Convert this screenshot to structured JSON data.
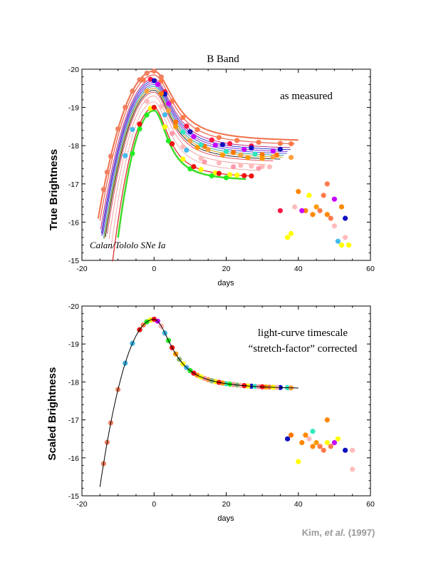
{
  "credit": {
    "author": "Kim, ",
    "etal": "et al.",
    "year": " (1997)"
  },
  "chart_data": [
    {
      "type": "line",
      "title": "B Band",
      "xlabel": "days",
      "ylabel": "True Brightness",
      "annotation": "as measured",
      "sample_label": "Calan/Tololo SNe Ia",
      "xlim": [
        -20,
        60
      ],
      "ylim": [
        -15,
        -20
      ],
      "y_inverted": true,
      "xticks": [
        "-20",
        "0",
        "20",
        "40",
        "60"
      ],
      "yticks": [
        "-20",
        "-19",
        "-18",
        "-17",
        "-16",
        "-15"
      ],
      "model": {
        "rise": [
          6.5,
          1.8
        ],
        "fall": [
          0.05,
          0.027
        ]
      },
      "curves": [
        {
          "stretch": 1.1,
          "peak": -19.95,
          "color": "#f0704a",
          "width": 2.0,
          "start": -15.5,
          "end": 40
        },
        {
          "stretch": 1.07,
          "peak": -19.85,
          "color": "#e8604a",
          "width": 1.2,
          "start": -15.0,
          "end": 39
        },
        {
          "stretch": 1.04,
          "peak": -19.75,
          "color": "#c02a80",
          "width": 1.0,
          "start": -14.8,
          "end": 38
        },
        {
          "stretch": 1.02,
          "peak": -19.7,
          "color": "#2a3fd0",
          "width": 1.0,
          "start": -14.6,
          "end": 38
        },
        {
          "stretch": 1.01,
          "peak": -19.65,
          "color": "#9030d0",
          "width": 1.0,
          "start": -14.5,
          "end": 37
        },
        {
          "stretch": 1.0,
          "peak": -19.6,
          "color": "#5050e0",
          "width": 1.0,
          "start": -14.2,
          "end": 37
        },
        {
          "stretch": 0.98,
          "peak": -19.55,
          "color": "#30a0a0",
          "width": 1.0,
          "start": -14.0,
          "end": 36
        },
        {
          "stretch": 0.97,
          "peak": -19.5,
          "color": "#d0a020",
          "width": 1.0,
          "start": -13.8,
          "end": 36
        },
        {
          "stretch": 0.96,
          "peak": -19.45,
          "color": "#303030",
          "width": 1.0,
          "start": -13.5,
          "end": 35
        },
        {
          "stretch": 0.94,
          "peak": -19.4,
          "color": "#e05060",
          "width": 1.0,
          "start": -13.0,
          "end": 33
        },
        {
          "stretch": 0.9,
          "peak": -19.3,
          "color": "#f4a0a0",
          "width": 1.0,
          "start": -12.5,
          "end": 31
        },
        {
          "stretch": 0.85,
          "peak": -19.15,
          "color": "#f0b0b0",
          "width": 1.0,
          "start": -12.0,
          "end": 29
        },
        {
          "stretch": 0.8,
          "peak": -19.0,
          "color": "#e02020",
          "width": 1.2,
          "start": -11.5,
          "end": 27
        },
        {
          "stretch": 0.76,
          "peak": -18.92,
          "color": "#3cdc28",
          "width": 2.5,
          "start": -10.0,
          "end": 25.5
        }
      ],
      "groups": [
        {
          "color": "#f08060",
          "stretch": 1.1,
          "peak": -19.95,
          "days": [
            -14,
            -13,
            -12,
            -10,
            -8,
            -6,
            -4,
            -2,
            0,
            2
          ]
        },
        {
          "color": "#ff7a4a",
          "stretch": 1.07,
          "peak": -19.85,
          "days": [
            -3,
            2,
            5,
            8,
            12,
            18,
            23,
            29,
            35,
            38
          ]
        },
        {
          "color": "#ff1744",
          "stretch": 1.04,
          "peak": -19.75,
          "days": [
            -1,
            3,
            9,
            16,
            21,
            27
          ]
        },
        {
          "color": "#1010c0",
          "stretch": 1.02,
          "peak": -19.7,
          "days": [
            0,
            3,
            10,
            19,
            27,
            35
          ]
        },
        {
          "color": "#c800ff",
          "stretch": 1.01,
          "peak": -19.65,
          "days": [
            1,
            4,
            11,
            17,
            25,
            33
          ]
        },
        {
          "color": "#ff7700",
          "stretch": 0.98,
          "peak": -19.55,
          "days": [
            2,
            6,
            14,
            22,
            30,
            34
          ]
        },
        {
          "color": "#30e8c0",
          "stretch": 0.98,
          "peak": -19.55,
          "days": [
            8,
            13,
            20,
            28
          ]
        },
        {
          "color": "#ffa040",
          "stretch": 0.97,
          "peak": -19.5,
          "days": [
            -2,
            4,
            10,
            15,
            24,
            33,
            38
          ]
        },
        {
          "color": "#ff9900",
          "stretch": 0.96,
          "peak": -19.45,
          "days": [
            6,
            12,
            19,
            26,
            30
          ]
        },
        {
          "color": "#ffbbbb",
          "stretch": 0.88,
          "peak": -19.25,
          "days": [
            -2,
            2,
            8,
            13,
            18,
            24,
            27,
            30,
            32
          ]
        },
        {
          "color": "#ff99aa",
          "stretch": 0.86,
          "peak": -19.2,
          "days": [
            5,
            14,
            22,
            29
          ]
        },
        {
          "color": "#ffff00",
          "stretch": 0.8,
          "peak": -19.0,
          "days": [
            -1,
            3,
            8,
            13,
            17,
            21,
            23
          ]
        },
        {
          "color": "#22ee22",
          "stretch": 0.76,
          "peak": -18.92,
          "days": [
            -6,
            -4,
            -2,
            4,
            10,
            16,
            20
          ]
        },
        {
          "color": "#ee1111",
          "stretch": 0.8,
          "peak": -19.0,
          "days": [
            -4,
            0,
            5,
            11,
            18,
            25,
            27
          ]
        },
        {
          "color": "#44bbee",
          "stretch": 0.88,
          "peak": -19.25,
          "days": [
            -8,
            -6,
            3,
            9
          ]
        }
      ],
      "extra_points": [
        {
          "x": 40,
          "y": -16.8,
          "color": "#ff8800"
        },
        {
          "x": 42,
          "y": -16.3,
          "color": "#ff8800"
        },
        {
          "x": 44,
          "y": -16.2,
          "color": "#ff8800"
        },
        {
          "x": 45,
          "y": -16.4,
          "color": "#ff9900"
        },
        {
          "x": 46,
          "y": -16.3,
          "color": "#ff7a4a"
        },
        {
          "x": 47,
          "y": -16.7,
          "color": "#ff7a4a"
        },
        {
          "x": 48,
          "y": -17.0,
          "color": "#ff7a4a"
        },
        {
          "x": 48,
          "y": -16.2,
          "color": "#ff8800"
        },
        {
          "x": 49,
          "y": -16.1,
          "color": "#ff7a4a"
        },
        {
          "x": 50,
          "y": -16.6,
          "color": "#c800ff"
        },
        {
          "x": 50,
          "y": -15.9,
          "color": "#ffbbbb"
        },
        {
          "x": 51,
          "y": -15.5,
          "color": "#44bbee"
        },
        {
          "x": 52,
          "y": -16.4,
          "color": "#ff8800"
        },
        {
          "x": 53,
          "y": -16.1,
          "color": "#1010c0"
        },
        {
          "x": 52,
          "y": -15.4,
          "color": "#ffff00"
        },
        {
          "x": 53,
          "y": -15.6,
          "color": "#ffbbbb"
        },
        {
          "x": 54,
          "y": -15.4,
          "color": "#ffff00"
        },
        {
          "x": 38,
          "y": -15.7,
          "color": "#ffff00"
        },
        {
          "x": 37,
          "y": -15.6,
          "color": "#ffff00"
        },
        {
          "x": 35,
          "y": -16.3,
          "color": "#ff1744"
        },
        {
          "x": 39,
          "y": -16.4,
          "color": "#ffbbbb"
        },
        {
          "x": 41,
          "y": -16.3,
          "color": "#c800ff"
        },
        {
          "x": 43,
          "y": -16.7,
          "color": "#ffff00"
        }
      ]
    },
    {
      "type": "scatter",
      "title": "",
      "xlabel": "days",
      "ylabel": "Scaled Brightness",
      "annotation_lines": [
        "light-curve timescale",
        "“stretch-factor” corrected"
      ],
      "xlim": [
        -20,
        60
      ],
      "ylim": [
        -15,
        -20
      ],
      "y_inverted": true,
      "xticks": [
        "-20",
        "0",
        "20",
        "40",
        "60"
      ],
      "yticks": [
        "-20",
        "-19",
        "-18",
        "-17",
        "-16",
        "-15"
      ],
      "model": {
        "rise": [
          6.5,
          1.8
        ],
        "fall": [
          0.05,
          0.027
        ]
      },
      "template": {
        "peak": -19.65,
        "start": -15,
        "end": 40,
        "color": "#000000"
      },
      "groups": [
        {
          "color": "#f08060",
          "days": [
            -14,
            -13,
            -12,
            -10,
            -8,
            -6,
            -4,
            -2,
            0,
            2
          ]
        },
        {
          "color": "#ff7a4a",
          "days": [
            -3,
            2,
            5,
            8,
            12,
            17,
            22,
            27,
            32,
            37
          ]
        },
        {
          "color": "#ff1744",
          "days": [
            -1,
            3,
            9,
            15,
            20,
            26
          ]
        },
        {
          "color": "#1010c0",
          "days": [
            0,
            3,
            10,
            19,
            27,
            35
          ]
        },
        {
          "color": "#c800ff",
          "days": [
            1,
            4,
            11,
            17,
            25,
            33
          ]
        },
        {
          "color": "#ff7700",
          "days": [
            2,
            6,
            14,
            22,
            30,
            34
          ]
        },
        {
          "color": "#30e8c0",
          "days": [
            8,
            13,
            20,
            28,
            37
          ]
        },
        {
          "color": "#ffa040",
          "days": [
            -2,
            4,
            10,
            15,
            24,
            33,
            38
          ]
        },
        {
          "color": "#ff9900",
          "days": [
            6,
            12,
            19,
            26,
            31
          ]
        },
        {
          "color": "#ffbbbb",
          "days": [
            -2,
            2,
            8,
            13,
            18,
            24,
            29,
            34
          ]
        },
        {
          "color": "#ff99aa",
          "days": [
            5,
            14,
            22,
            29
          ]
        },
        {
          "color": "#ffff00",
          "days": [
            -1,
            3,
            8,
            13,
            17,
            21,
            26,
            33
          ]
        },
        {
          "color": "#22ee22",
          "days": [
            -6,
            -4,
            -2,
            4,
            10,
            16,
            21
          ]
        },
        {
          "color": "#ee1111",
          "days": [
            -4,
            0,
            5,
            11,
            18,
            25,
            30
          ]
        },
        {
          "color": "#44bbee",
          "days": [
            -8,
            -6,
            3,
            9
          ]
        },
        {
          "color": "#8bb37a",
          "days": [
            7,
            16,
            23
          ]
        }
      ],
      "extra_points": [
        {
          "x": 41,
          "y": -16.4,
          "color": "#ff8800"
        },
        {
          "x": 42,
          "y": -16.6,
          "color": "#ff8800"
        },
        {
          "x": 44,
          "y": -16.3,
          "color": "#ff8800"
        },
        {
          "x": 45,
          "y": -16.4,
          "color": "#ff9900"
        },
        {
          "x": 46,
          "y": -16.3,
          "color": "#ff7a4a"
        },
        {
          "x": 47,
          "y": -16.2,
          "color": "#ff7a4a"
        },
        {
          "x": 48,
          "y": -17.0,
          "color": "#ff8800"
        },
        {
          "x": 48,
          "y": -16.4,
          "color": "#ffff00"
        },
        {
          "x": 49,
          "y": -16.3,
          "color": "#ff7a4a"
        },
        {
          "x": 50,
          "y": -16.4,
          "color": "#c800ff"
        },
        {
          "x": 51,
          "y": -16.5,
          "color": "#ffff00"
        },
        {
          "x": 53,
          "y": -16.2,
          "color": "#1010c0"
        },
        {
          "x": 55,
          "y": -16.2,
          "color": "#ffbbbb"
        },
        {
          "x": 55,
          "y": -15.7,
          "color": "#ffbbbb"
        },
        {
          "x": 40,
          "y": -15.9,
          "color": "#ffff00"
        },
        {
          "x": 44,
          "y": -16.7,
          "color": "#30e8c0"
        },
        {
          "x": 37,
          "y": -16.5,
          "color": "#1010c0"
        },
        {
          "x": 38,
          "y": -16.6,
          "color": "#ff7700"
        },
        {
          "x": 43,
          "y": -16.5,
          "color": "#ffbbbb"
        }
      ]
    }
  ]
}
